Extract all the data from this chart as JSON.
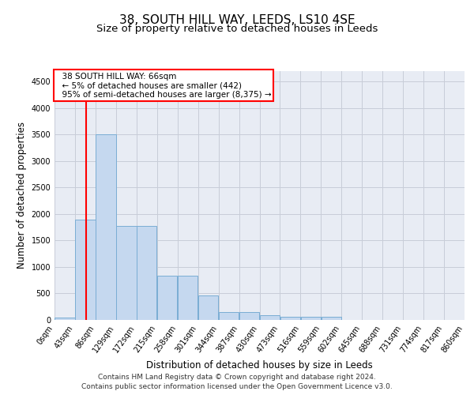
{
  "title": "38, SOUTH HILL WAY, LEEDS, LS10 4SE",
  "subtitle": "Size of property relative to detached houses in Leeds",
  "xlabel": "Distribution of detached houses by size in Leeds",
  "ylabel": "Number of detached properties",
  "bar_color": "#c5d8ef",
  "bar_edge_color": "#7aadd4",
  "vline_color": "red",
  "vline_x": 66,
  "annotation_title": "38 SOUTH HILL WAY: 66sqm",
  "annotation_line1": "← 5% of detached houses are smaller (442)",
  "annotation_line2": "95% of semi-detached houses are larger (8,375) →",
  "annotation_box_color": "red",
  "bin_edges": [
    0,
    43,
    86,
    129,
    172,
    215,
    258,
    301,
    344,
    387,
    430,
    473,
    516,
    559,
    602,
    645,
    688,
    731,
    774,
    817,
    860
  ],
  "bar_heights": [
    50,
    1900,
    3500,
    1780,
    1780,
    840,
    840,
    460,
    155,
    155,
    90,
    60,
    55,
    55,
    0,
    0,
    0,
    0,
    0,
    0
  ],
  "ylim": [
    0,
    4700
  ],
  "yticks": [
    0,
    500,
    1000,
    1500,
    2000,
    2500,
    3000,
    3500,
    4000,
    4500
  ],
  "grid_color": "#c8cdd8",
  "bg_color": "#e8ecf4",
  "footer1": "Contains HM Land Registry data © Crown copyright and database right 2024.",
  "footer2": "Contains public sector information licensed under the Open Government Licence v3.0.",
  "title_fontsize": 11,
  "subtitle_fontsize": 9.5,
  "label_fontsize": 8.5,
  "tick_fontsize": 7,
  "footer_fontsize": 6.5,
  "annotation_fontsize": 7.5
}
